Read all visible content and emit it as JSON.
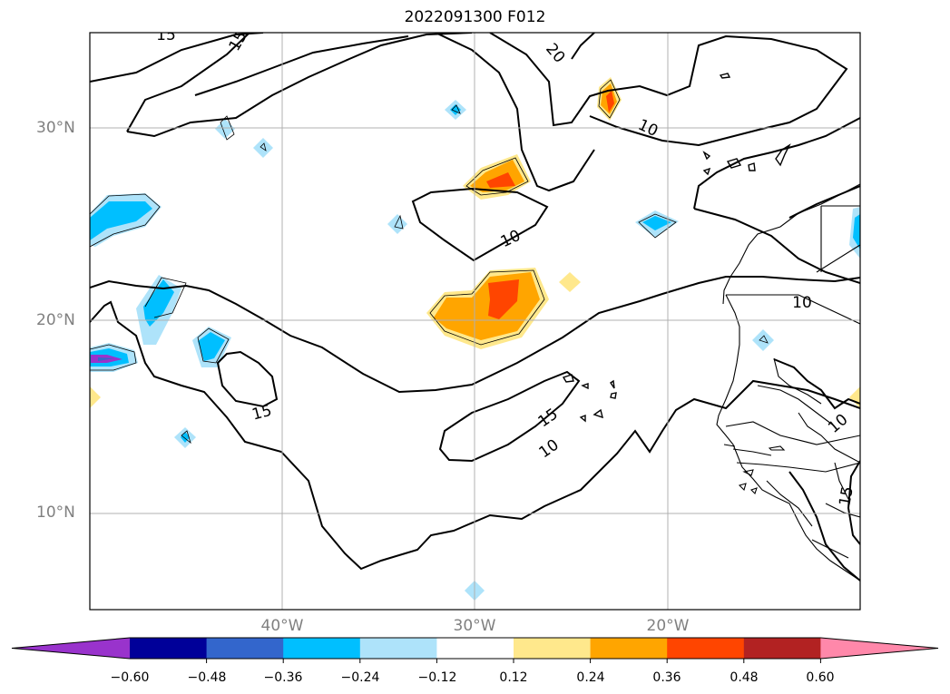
{
  "title": "2022091300 F012",
  "lat_labels": [
    "30°N",
    "20°N",
    "10°N"
  ],
  "lon_labels": [
    "40°W",
    "30°W",
    "20°W"
  ],
  "contour_labels": [
    "15",
    "15",
    "20",
    "10",
    "10",
    "15",
    "15",
    "10",
    "10",
    "10",
    "15"
  ],
  "colorbar": {
    "tick_labels": [
      "−0.60",
      "−0.48",
      "−0.36",
      "−0.24",
      "−0.12",
      "0.12",
      "0.24",
      "0.36",
      "0.48",
      "0.60"
    ],
    "colors": [
      "#9933cc",
      "#000099",
      "#3366cc",
      "#00bfff",
      "#aee3fa",
      "#ffffff",
      "#ffe88c",
      "#ffa500",
      "#ff4500",
      "#b22222",
      "#ff88aa"
    ]
  }
}
